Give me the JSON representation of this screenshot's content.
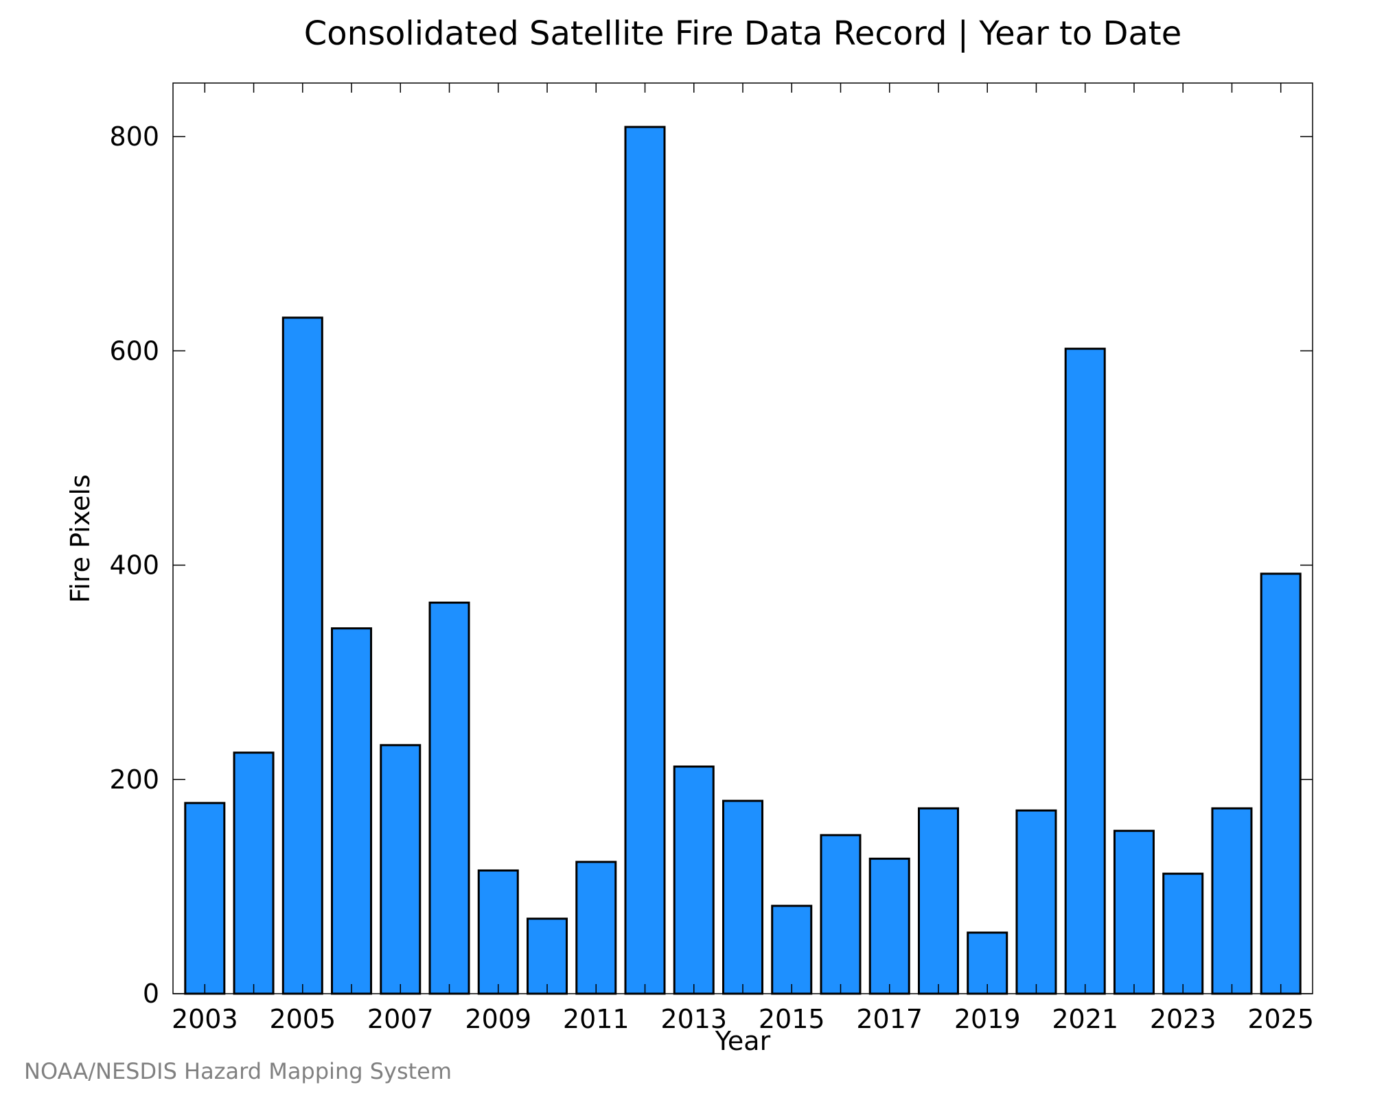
{
  "chart_data": {
    "type": "bar",
    "title": "Consolidated Satellite Fire Data Record | Year to Date",
    "xlabel": "Year",
    "ylabel": "Fire Pixels",
    "categories": [
      "2003",
      "2004",
      "2005",
      "2006",
      "2007",
      "2008",
      "2009",
      "2010",
      "2011",
      "2012",
      "2013",
      "2014",
      "2015",
      "2016",
      "2017",
      "2018",
      "2019",
      "2020",
      "2021",
      "2022",
      "2023",
      "2024",
      "2025"
    ],
    "values": [
      178,
      225,
      631,
      341,
      232,
      365,
      115,
      70,
      123,
      809,
      212,
      180,
      82,
      148,
      126,
      173,
      57,
      171,
      602,
      152,
      112,
      173,
      392
    ],
    "x_tick_labels": [
      "2003",
      "2005",
      "2007",
      "2009",
      "2011",
      "2013",
      "2015",
      "2017",
      "2019",
      "2021",
      "2023",
      "2025"
    ],
    "y_ticks": [
      0,
      200,
      400,
      600,
      800
    ],
    "ylim": [
      0,
      850
    ],
    "bar_color": "#1e90ff",
    "grid": false,
    "legend": "none"
  },
  "source_text": "NOAA/NESDIS Hazard Mapping System"
}
